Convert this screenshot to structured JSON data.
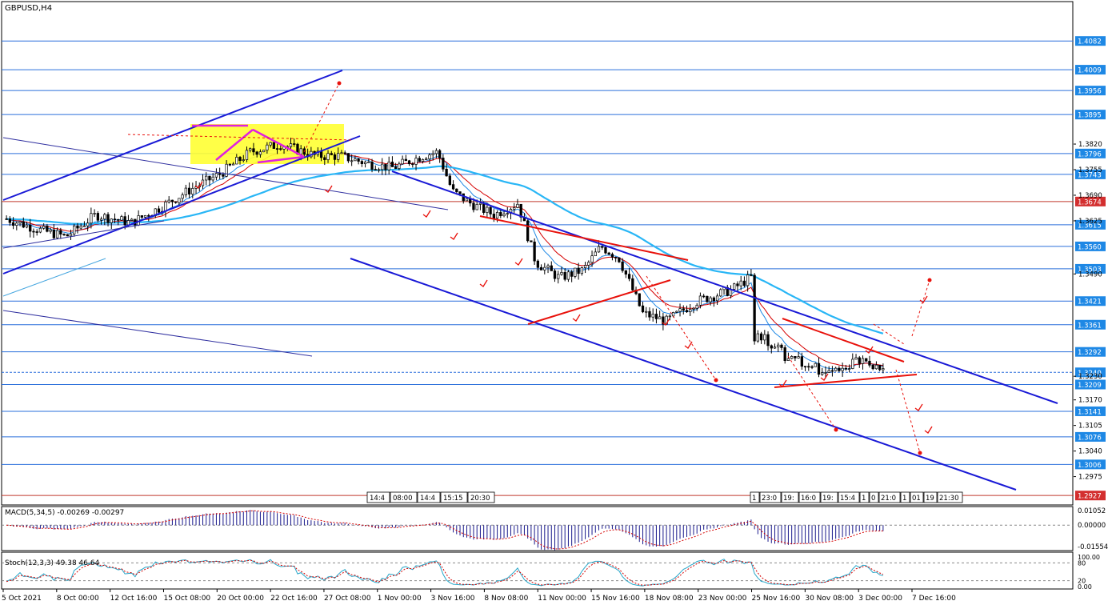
{
  "chart_data": {
    "type": "candlestick",
    "title": "GBPUSD,H4",
    "price_axis": {
      "range": [
        1.292,
        1.415
      ],
      "tick_labels": [
        "1.3820",
        "1.3755",
        "1.3690",
        "1.3625",
        "1.3490",
        "1.3230",
        "1.3170",
        "1.3105",
        "1.3040",
        "1.2975"
      ],
      "tick_values": [
        1.382,
        1.3755,
        1.369,
        1.3625,
        1.349,
        1.323,
        1.317,
        1.3105,
        1.304,
        1.2975
      ],
      "level_labels": [
        "1.4082",
        "1.4009",
        "1.3956",
        "1.3895",
        "1.3796",
        "1.3743",
        "1.3674",
        "1.3615",
        "1.3560",
        "1.3503",
        "1.3421",
        "1.3361",
        "1.3292",
        "1.3240",
        "1.3209",
        "1.3141",
        "1.3076",
        "1.3006",
        "1.2927"
      ],
      "level_values": [
        1.4082,
        1.4009,
        1.3956,
        1.3895,
        1.3796,
        1.3743,
        1.3674,
        1.3615,
        1.356,
        1.3503,
        1.3421,
        1.3361,
        1.3292,
        1.324,
        1.3209,
        1.3141,
        1.3076,
        1.3006,
        1.2927
      ],
      "current_price": "1.3240",
      "current_price_value": 1.324,
      "red_level": "1.3674",
      "red_level_value": 1.3674,
      "bottom_level": "1.2927",
      "bottom_level_value": 1.2927
    },
    "time_axis": {
      "labels": [
        "5 Oct 2021",
        "8 Oct 00:00",
        "12 Oct 16:00",
        "15 Oct 08:00",
        "20 Oct 00:00",
        "22 Oct 16:00",
        "27 Oct 08:00",
        "1 Nov 00:00",
        "3 Nov 16:00",
        "8 Nov 08:00",
        "11 Nov 00:00",
        "15 Nov 16:00",
        "18 Nov 08:00",
        "23 Nov 00:00",
        "25 Nov 16:00",
        "30 Nov 08:00",
        "3 Dec 00:00",
        "7 Dec 16:00"
      ]
    },
    "marker_labels_left": [
      "14:4",
      "08:00",
      "14:4",
      "15:15",
      "20:30"
    ],
    "marker_labels_right": [
      "1",
      "23:0",
      "19:",
      "16:0",
      "19:",
      "15:4",
      "1",
      "0",
      "21:0",
      "1",
      "01",
      "19",
      "21:30"
    ],
    "series": [
      {
        "name": "GBPUSD,H4",
        "kind": "candles"
      }
    ],
    "macd": {
      "label": "MACD(5,34,5) -0.00269 -0.00297",
      "axis_labels": [
        "0.01052",
        "0.00000",
        "-0.01554"
      ],
      "axis_values": [
        0.01052,
        0.0,
        -0.01554
      ]
    },
    "stochastic": {
      "label": "Stoch(12,3,3) 49.38 46.64",
      "axis_labels": [
        "100.00",
        "80",
        "20",
        "0.00"
      ],
      "axis_values": [
        100,
        80,
        20,
        0
      ]
    },
    "colors": {
      "up": "#000000",
      "down": "#000000",
      "ma_fast": "#1e88e5",
      "ma_mid": "#d50000",
      "ma_slow": "#29b6f6",
      "channel": "#1a1ad6",
      "pattern": "#e8120c",
      "highlight": "#ffff33",
      "magenta": "#e020e0",
      "level": "#2a6fdb",
      "price_badge": "#1e88e5"
    },
    "grid": false,
    "legend": "none"
  }
}
